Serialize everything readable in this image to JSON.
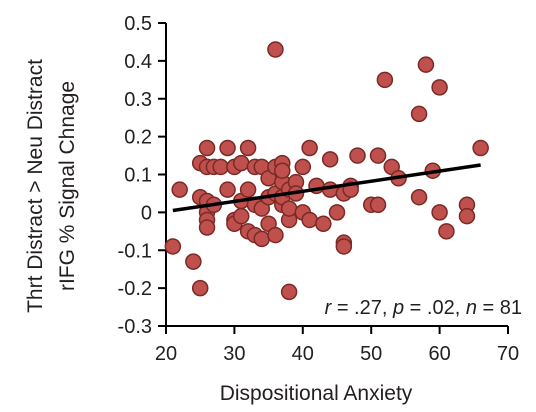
{
  "chart_data": {
    "type": "scatter",
    "title": "",
    "xlabel": "Dispositional Anxiety",
    "ylabel_lines": [
      "Thrt Distract > Neu Distract",
      "rIFG % Signal Chnage"
    ],
    "xlim": [
      20,
      70
    ],
    "ylim": [
      -0.3,
      0.5
    ],
    "x_ticks": [
      20,
      30,
      40,
      50,
      60,
      70
    ],
    "x_tick_labels": [
      "20",
      "30",
      "40",
      "50",
      "60",
      "70"
    ],
    "y_ticks": [
      -0.3,
      -0.2,
      -0.1,
      0,
      0.1,
      0.2,
      0.3,
      0.4,
      0.5
    ],
    "y_tick_labels": [
      "-0.3",
      "-0.2",
      "-0.1",
      "0",
      "0.1",
      "0.2",
      "0.3",
      "0.4",
      "0.5"
    ],
    "grid": false,
    "legend": "none",
    "annotation": {
      "r_label": "r",
      "r_value": " = .27, ",
      "p_label": "p",
      "p_value": " = .02, ",
      "n_label": "n",
      "n_value": " = 81"
    },
    "marker_fill": "#c0504d",
    "marker_edge": "#7a2a25",
    "trend_line": {
      "x": [
        21,
        66
      ],
      "y": [
        0.005,
        0.125
      ],
      "color": "#000000"
    },
    "points": [
      [
        21,
        -0.09
      ],
      [
        22,
        0.06
      ],
      [
        24,
        -0.13
      ],
      [
        25,
        -0.2
      ],
      [
        25,
        0.13
      ],
      [
        25,
        0.04
      ],
      [
        26,
        0.17
      ],
      [
        26,
        0.12
      ],
      [
        26,
        0.03
      ],
      [
        26,
        0.0
      ],
      [
        26,
        -0.02
      ],
      [
        26,
        -0.04
      ],
      [
        27,
        0.12
      ],
      [
        27,
        0.02
      ],
      [
        28,
        0.12
      ],
      [
        29,
        0.17
      ],
      [
        29,
        0.06
      ],
      [
        30,
        0.12
      ],
      [
        30,
        -0.02
      ],
      [
        30,
        -0.03
      ],
      [
        31,
        0.03
      ],
      [
        31,
        -0.01
      ],
      [
        31,
        0.13
      ],
      [
        32,
        0.06
      ],
      [
        32,
        -0.05
      ],
      [
        32,
        0.17
      ],
      [
        33,
        0.12
      ],
      [
        33,
        0.02
      ],
      [
        33,
        -0.06
      ],
      [
        34,
        0.12
      ],
      [
        34,
        0.01
      ],
      [
        34,
        -0.07
      ],
      [
        35,
        0.04
      ],
      [
        35,
        0.09
      ],
      [
        35,
        -0.03
      ],
      [
        36,
        0.43
      ],
      [
        36,
        0.12
      ],
      [
        36,
        0.05
      ],
      [
        36,
        -0.06
      ],
      [
        37,
        0.02
      ],
      [
        37,
        0.08
      ],
      [
        37,
        0.13
      ],
      [
        37,
        0.04
      ],
      [
        37,
        0.11
      ],
      [
        38,
        0.06
      ],
      [
        38,
        -0.02
      ],
      [
        38,
        0.01
      ],
      [
        38,
        -0.21
      ],
      [
        39,
        0.08
      ],
      [
        39,
        0.05
      ],
      [
        40,
        0.0
      ],
      [
        41,
        0.17
      ],
      [
        41,
        -0.02
      ],
      [
        42,
        0.07
      ],
      [
        43,
        -0.03
      ],
      [
        44,
        0.14
      ],
      [
        44,
        0.06
      ],
      [
        45,
        0.0
      ],
      [
        46,
        -0.08
      ],
      [
        46,
        -0.09
      ],
      [
        46,
        0.05
      ],
      [
        47,
        0.07
      ],
      [
        48,
        0.15
      ],
      [
        50,
        0.02
      ],
      [
        51,
        0.15
      ],
      [
        51,
        0.02
      ],
      [
        52,
        0.35
      ],
      [
        53,
        0.12
      ],
      [
        54,
        0.09
      ],
      [
        57,
        0.26
      ],
      [
        57,
        0.04
      ],
      [
        58,
        0.39
      ],
      [
        59,
        0.11
      ],
      [
        60,
        0.33
      ],
      [
        60,
        0.0
      ],
      [
        61,
        -0.05
      ],
      [
        64,
        0.02
      ],
      [
        64,
        -0.01
      ],
      [
        66,
        0.17
      ],
      [
        40,
        0.12
      ],
      [
        47,
        0.06
      ]
    ]
  }
}
